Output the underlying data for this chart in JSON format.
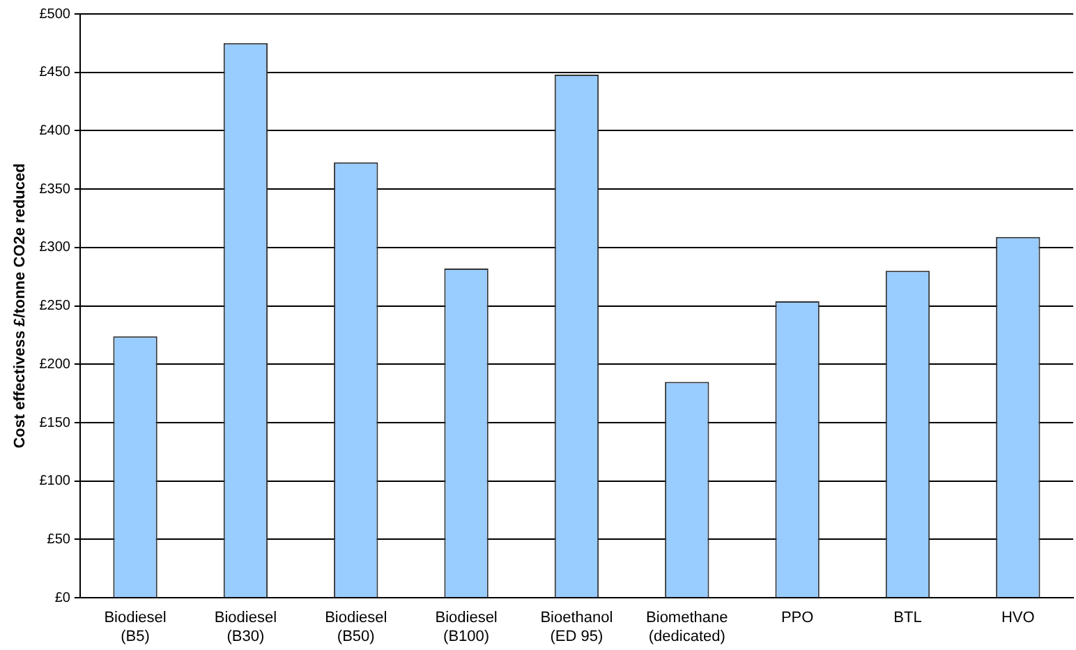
{
  "chart_data": {
    "type": "bar",
    "ylabel": "Cost effectivess £/tonne CO2e reduced",
    "categories": [
      "Biodiesel (B5)",
      "Biodiesel (B30)",
      "Biodiesel (B50)",
      "Biodiesel (B100)",
      "Bioethanol (ED 95)",
      "Biomethane (dedicated)",
      "PPO",
      "BTL",
      "HVO"
    ],
    "values": [
      224,
      475,
      373,
      282,
      448,
      185,
      254,
      280,
      309
    ],
    "color": "#99ccff",
    "ylim": [
      0,
      500
    ],
    "yticks": [
      {
        "value": 0,
        "label": "£0"
      },
      {
        "value": 50,
        "label": "£50"
      },
      {
        "value": 100,
        "label": "£100"
      },
      {
        "value": 150,
        "label": "£150"
      },
      {
        "value": 200,
        "label": "£200"
      },
      {
        "value": 250,
        "label": "£250"
      },
      {
        "value": 300,
        "label": "£300"
      },
      {
        "value": 350,
        "label": "£350"
      },
      {
        "value": 400,
        "label": "£400"
      },
      {
        "value": 450,
        "label": "£450"
      },
      {
        "value": 500,
        "label": "£500"
      }
    ],
    "grid": "y"
  }
}
